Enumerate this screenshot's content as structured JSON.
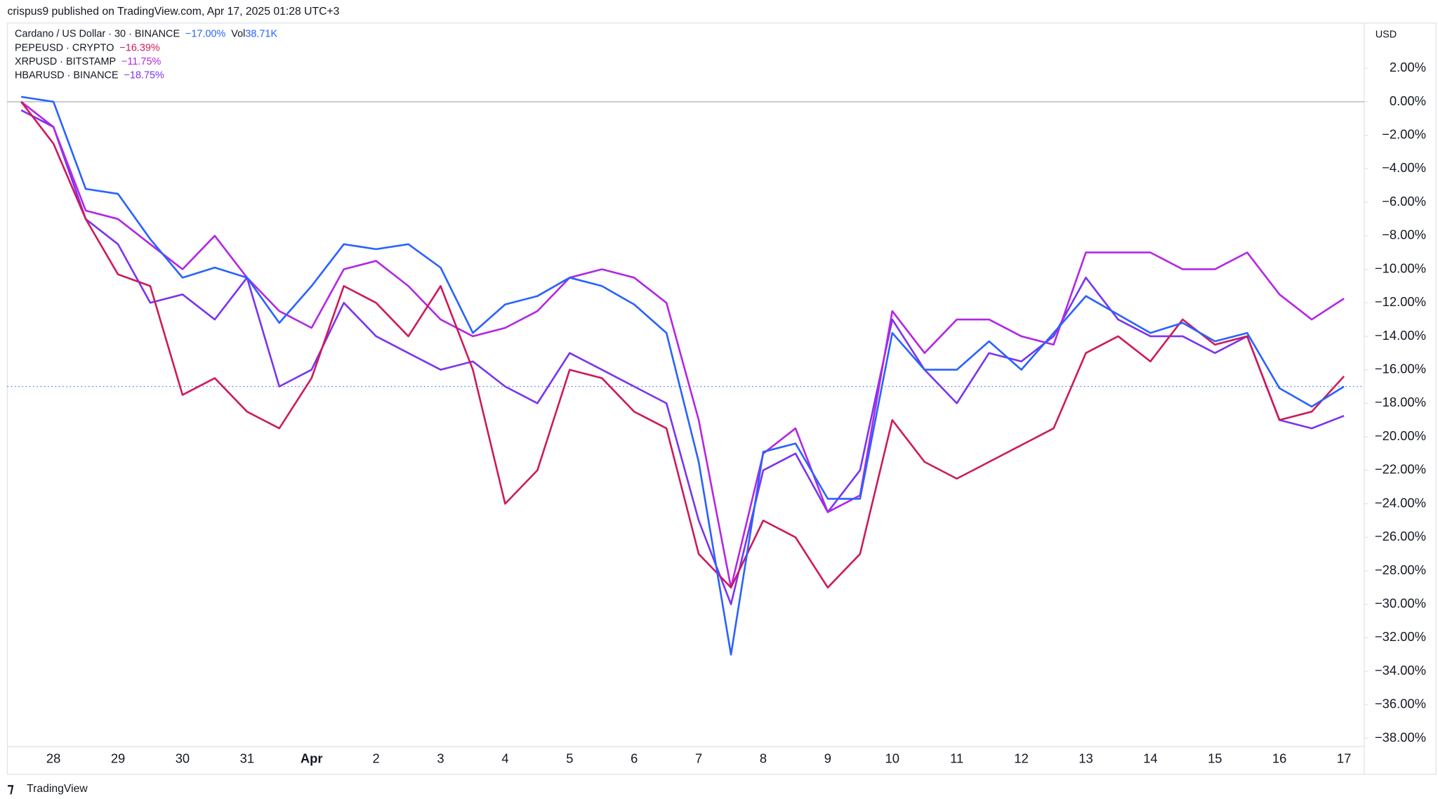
{
  "chart_data": {
    "type": "line",
    "title": "crispus9 published on TradingView.com, Apr 17, 2025 01:28 UTC+3",
    "y_axis_label": "USD",
    "footer": "TradingView",
    "volume_label": "Vol",
    "volume_value": "38.71K",
    "categories": [
      null,
      "28",
      null,
      "29",
      null,
      "30",
      null,
      "31",
      null,
      "Apr",
      null,
      "2",
      null,
      "3",
      null,
      "4",
      null,
      "5",
      null,
      "6",
      null,
      "7",
      null,
      "8",
      null,
      "9",
      null,
      "10",
      null,
      "11",
      null,
      "12",
      null,
      "13",
      null,
      "14",
      null,
      "15",
      null,
      "16",
      null,
      "17"
    ],
    "ylim": [
      -38.5,
      4.7
    ],
    "yticks": [
      {
        "value": 2,
        "label": "2.00%"
      },
      {
        "value": 0,
        "label": "0.00%"
      },
      {
        "value": -2,
        "label": "−2.00%"
      },
      {
        "value": -4,
        "label": "−4.00%"
      },
      {
        "value": -6,
        "label": "−6.00%"
      },
      {
        "value": -8,
        "label": "−8.00%"
      },
      {
        "value": -10,
        "label": "−10.00%"
      },
      {
        "value": -12,
        "label": "−12.00%"
      },
      {
        "value": -14,
        "label": "−14.00%"
      },
      {
        "value": -16,
        "label": "−16.00%"
      },
      {
        "value": -18,
        "label": "−18.00%"
      },
      {
        "value": -20,
        "label": "−20.00%"
      },
      {
        "value": -22,
        "label": "−22.00%"
      },
      {
        "value": -24,
        "label": "−24.00%"
      },
      {
        "value": -26,
        "label": "−26.00%"
      },
      {
        "value": -28,
        "label": "−28.00%"
      },
      {
        "value": -30,
        "label": "−30.00%"
      },
      {
        "value": -32,
        "label": "−32.00%"
      },
      {
        "value": -34,
        "label": "−34.00%"
      },
      {
        "value": -36,
        "label": "−36.00%"
      },
      {
        "value": -38,
        "label": "−38.00%"
      }
    ],
    "grid": false,
    "zero_line": true,
    "series": [
      {
        "name": "Cardano / US Dollar · 30 · BINANCE",
        "change_label": "−17.00%",
        "color": "#2962ff",
        "values": [
          0.3,
          0,
          -5.2,
          -5.5,
          -8.2,
          -10.5,
          -9.9,
          -10.5,
          -13.2,
          -11,
          -8.5,
          -8.8,
          -8.5,
          -9.9,
          -13.8,
          -12.1,
          -11.6,
          -10.5,
          -11,
          -12.1,
          -13.8,
          -21.5,
          -33,
          -20.9,
          -20.4,
          -23.7,
          -23.7,
          -13.8,
          -16,
          -16,
          -14.3,
          -16,
          -13.8,
          -11.6,
          -12.7,
          -13.8,
          -13.2,
          -14.3,
          -13.8,
          -17.1,
          -18.2,
          -17
        ]
      },
      {
        "name": "PEPEUSD · CRYPTO",
        "change_label": "−16.39%",
        "color": "#cc1b5c",
        "values": [
          0,
          -2.5,
          -7,
          -10.3,
          -11,
          -17.5,
          -16.5,
          -18.5,
          -19.5,
          -16.5,
          -11,
          -12,
          -14,
          -11,
          -16,
          -24,
          -22,
          -16,
          -16.5,
          -18.5,
          -19.5,
          -27,
          -29,
          -25,
          -26,
          -29,
          -27,
          -19,
          -21.5,
          -22.5,
          -21.5,
          -20.5,
          -19.5,
          -15,
          -14,
          -15.5,
          -13,
          -14.5,
          -14,
          -19,
          -18.5,
          -16.39
        ]
      },
      {
        "name": "XRPUSD · BITSTAMP",
        "change_label": "−11.75%",
        "color": "#b327e6",
        "values": [
          0,
          -1.5,
          -6.5,
          -7,
          -8.5,
          -10,
          -8,
          -10.5,
          -12.5,
          -13.5,
          -10,
          -9.5,
          -11,
          -13,
          -14,
          -13.5,
          -12.5,
          -10.5,
          -10,
          -10.5,
          -12,
          -19,
          -29,
          -21,
          -19.5,
          -24.5,
          -23.5,
          -12.5,
          -15,
          -13,
          -13,
          -14,
          -14.5,
          -9,
          -9,
          -9,
          -10,
          -10,
          -9,
          -11.5,
          -13,
          -11.75
        ]
      },
      {
        "name": "HBARUSD · BINANCE",
        "change_label": "−18.75%",
        "color": "#7a35f0",
        "values": [
          -0.5,
          -1.5,
          -7,
          -8.5,
          -12,
          -11.5,
          -13,
          -10.5,
          -17,
          -16,
          -12,
          -14,
          -15,
          -16,
          -15.5,
          -17,
          -18,
          -15,
          -16,
          -17,
          -18,
          -25,
          -30,
          -22,
          -21,
          -24.5,
          -22,
          -13,
          -16,
          -18,
          -15,
          -15.5,
          -14,
          -10.5,
          -13,
          -14,
          -14,
          -15,
          -14,
          -19,
          -19.5,
          -18.75
        ]
      }
    ]
  }
}
